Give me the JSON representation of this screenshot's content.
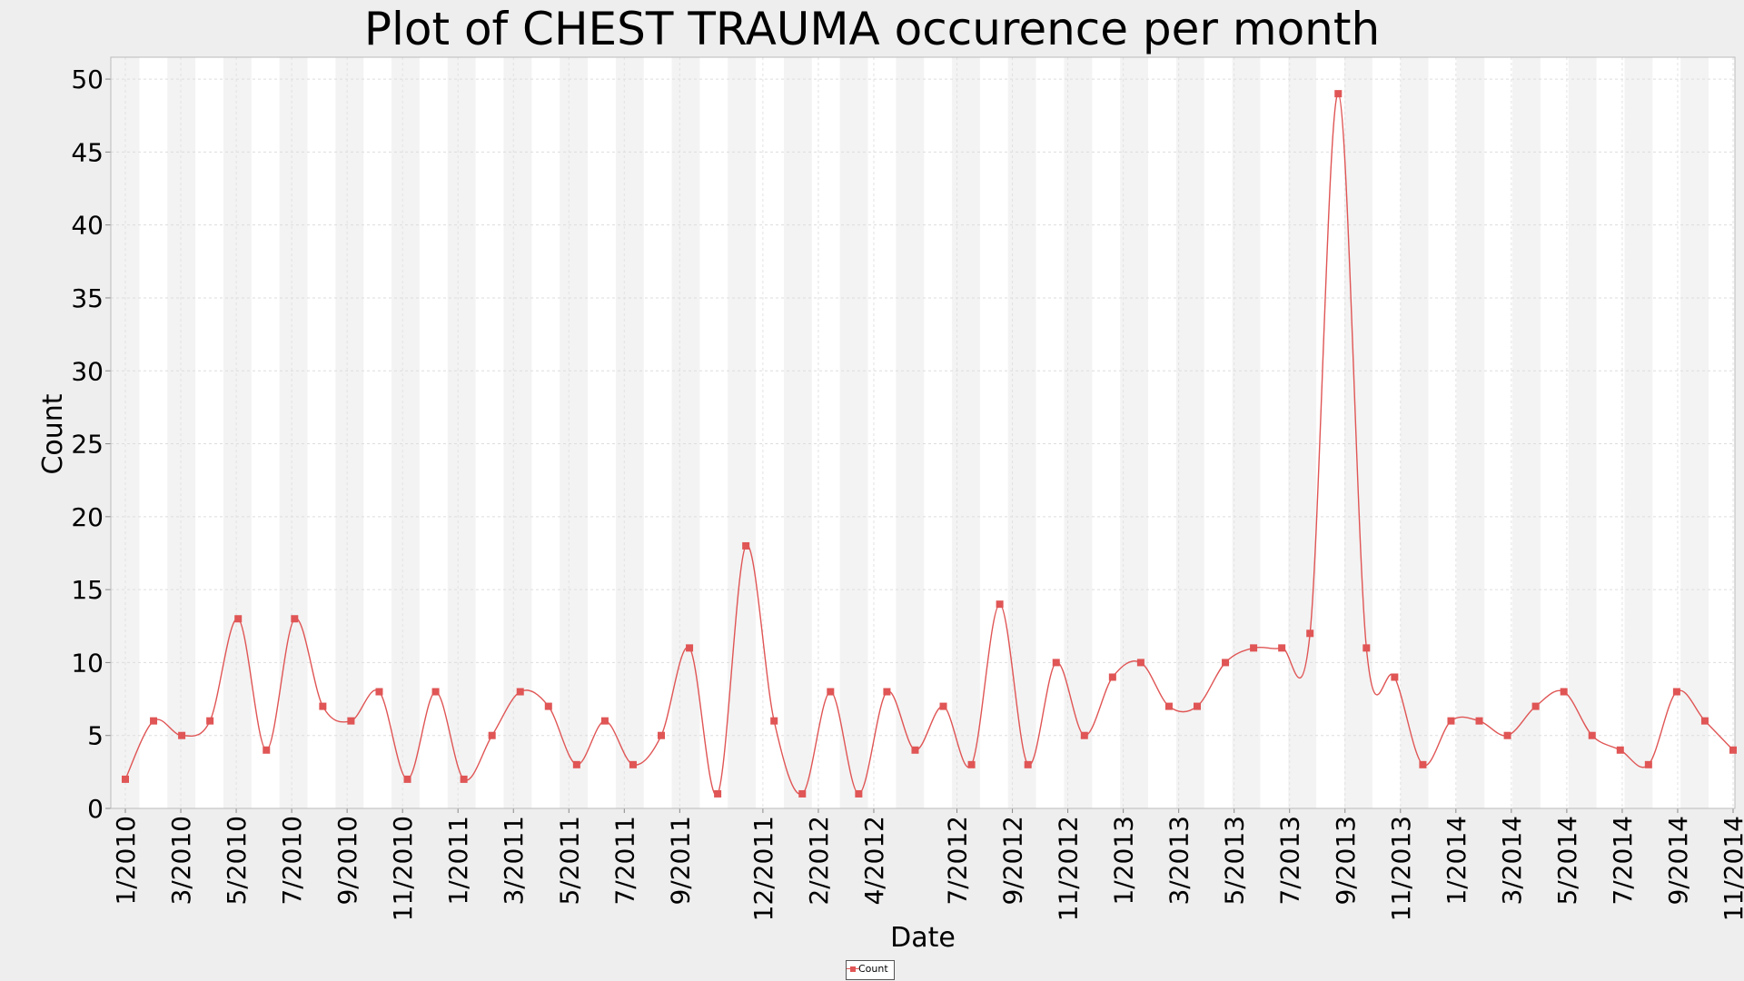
{
  "chart_data": {
    "type": "line",
    "title": "Plot of CHEST TRAUMA occurence per month",
    "xlabel": "Date",
    "ylabel": "Count",
    "ylim": [
      0,
      51.5
    ],
    "y_ticks": [
      0,
      5,
      10,
      15,
      20,
      25,
      30,
      35,
      40,
      45,
      50
    ],
    "x_tick_labels": [
      "1/2010",
      "3/2010",
      "5/2010",
      "7/2010",
      "9/2010",
      "11/2010",
      "1/2011",
      "3/2011",
      "5/2011",
      "7/2011",
      "9/2011",
      "12/2011",
      "2/2012",
      "4/2012",
      "7/2012",
      "9/2012",
      "11/2012",
      "1/2013",
      "3/2013",
      "5/2013",
      "7/2013",
      "9/2013",
      "11/2013",
      "1/2014",
      "3/2014",
      "5/2014",
      "7/2014",
      "9/2014",
      "11/2014"
    ],
    "grid": true,
    "legend_position": "bottom-center",
    "color": "#e05555",
    "series": [
      {
        "name": "Count",
        "values": [
          2,
          6,
          5,
          6,
          13,
          4,
          13,
          7,
          6,
          8,
          2,
          8,
          2,
          5,
          8,
          7,
          3,
          6,
          3,
          5,
          11,
          1,
          18,
          6,
          1,
          8,
          1,
          8,
          4,
          7,
          3,
          14,
          3,
          10,
          5,
          9,
          10,
          7,
          7,
          10,
          11,
          11,
          12,
          49,
          11,
          9,
          3,
          6,
          6,
          5,
          7,
          8,
          5,
          4,
          3,
          8,
          6,
          4
        ]
      }
    ]
  }
}
